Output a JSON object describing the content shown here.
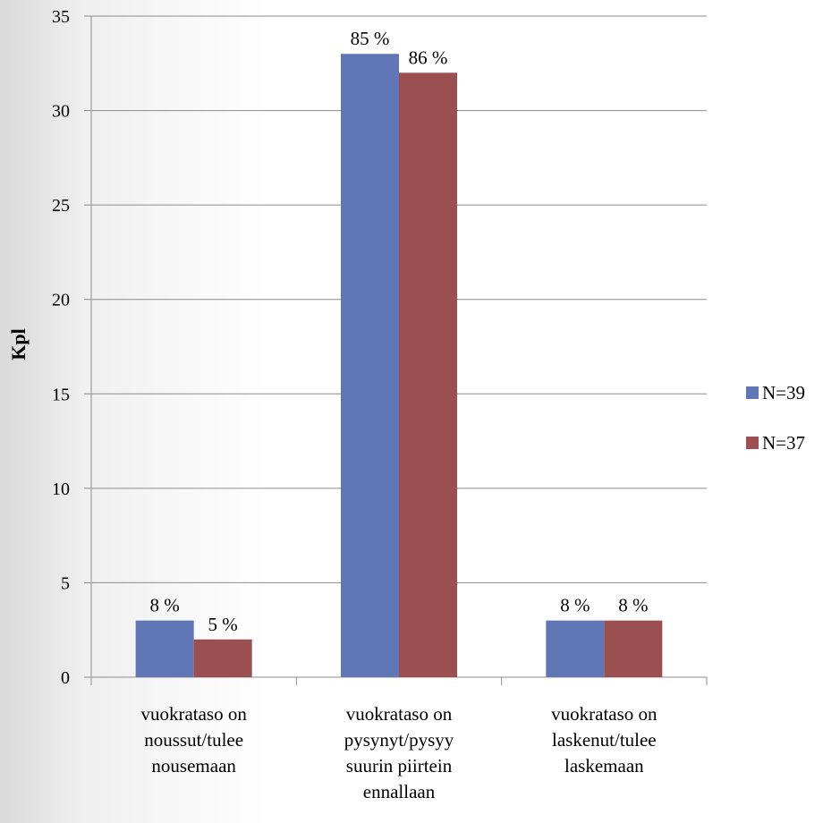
{
  "chart_data": {
    "type": "bar",
    "ylabel": "Kpl",
    "ylim": [
      0,
      35
    ],
    "yticks": [
      0,
      5,
      10,
      15,
      20,
      25,
      30,
      35
    ],
    "grid": true,
    "legend_position": "right",
    "categories": [
      [
        "vuokrataso on",
        "noussut/tulee",
        "nousemaan"
      ],
      [
        "vuokrataso on",
        "pysynyt/pysyy",
        "suurin piirtein",
        "ennallaan"
      ],
      [
        "vuokrataso on",
        "laskenut/tulee",
        "laskemaan"
      ]
    ],
    "series": [
      {
        "name": "N=39",
        "color": "#6076b5",
        "values": [
          3,
          33,
          3
        ],
        "labels": [
          "8 %",
          "85 %",
          "8 %"
        ]
      },
      {
        "name": "N=37",
        "color": "#9c4f50",
        "values": [
          2,
          32,
          3
        ],
        "labels": [
          "5 %",
          "86 %",
          "8 %"
        ]
      }
    ]
  }
}
